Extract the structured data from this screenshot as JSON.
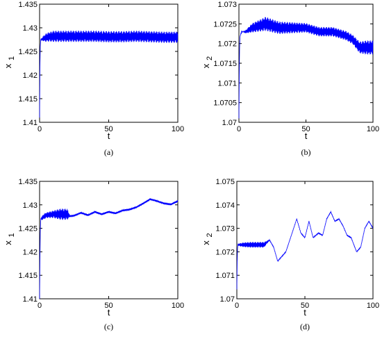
{
  "chart_data": [
    {
      "type": "line",
      "caption": "(a)",
      "xlabel": "t",
      "ylabel": "x",
      "ylabel_sub": "1",
      "xlim": [
        0,
        100
      ],
      "ylim": [
        1.41,
        1.435
      ],
      "xticks": [
        "0",
        "50",
        "100"
      ],
      "yticks": [
        "1.41",
        "1.415",
        "1.42",
        "1.425",
        "1.43",
        "1.435"
      ],
      "series": [
        {
          "color": "#0000ff",
          "x": [
            0,
            0.3,
            0.6,
            1,
            2,
            3,
            4,
            5,
            10,
            20,
            30,
            40,
            50,
            60,
            70,
            80,
            90,
            100
          ],
          "y": [
            1.411,
            1.424,
            1.427,
            1.4275,
            1.4276,
            1.4278,
            1.4278,
            1.428,
            1.4282,
            1.4282,
            1.4282,
            1.4282,
            1.4281,
            1.4281,
            1.4282,
            1.4281,
            1.428,
            1.428
          ],
          "osc_amp": [
            0,
            0,
            0,
            0.0002,
            0.0004,
            0.0006,
            0.0008,
            0.0009,
            0.0012,
            0.0012,
            0.0012,
            0.0012,
            0.0012,
            0.0012,
            0.0012,
            0.0012,
            0.0012,
            0.0012
          ]
        }
      ]
    },
    {
      "type": "line",
      "caption": "(b)",
      "xlabel": "t",
      "ylabel": "x",
      "ylabel_sub": "2",
      "xlim": [
        0,
        100
      ],
      "ylim": [
        1.07,
        1.073
      ],
      "xticks": [
        "0",
        "50",
        "100"
      ],
      "yticks": [
        "1.07",
        "1.0705",
        "1.071",
        "1.0715",
        "1.072",
        "1.0725",
        "1.073"
      ],
      "series": [
        {
          "color": "#0000ff",
          "x": [
            0,
            0.3,
            0.6,
            1,
            2,
            3,
            5,
            10,
            20,
            30,
            40,
            50,
            60,
            70,
            80,
            85,
            90,
            95,
            100
          ],
          "y": [
            1.0701,
            1.0714,
            1.0721,
            1.0722,
            1.0723,
            1.0723,
            1.0723,
            1.0724,
            1.0725,
            1.0724,
            1.0724,
            1.0724,
            1.0723,
            1.0723,
            1.0722,
            1.0721,
            1.0719,
            1.0719,
            1.0719
          ],
          "osc_amp": [
            0,
            0,
            0,
            0,
            3e-05,
            0,
            4e-05,
            0.00012,
            0.00018,
            0.00016,
            0.00014,
            0.00012,
            0.00012,
            0.00012,
            0.00012,
            0.00012,
            0.00015,
            0.00018,
            0.00018
          ]
        }
      ]
    },
    {
      "type": "line",
      "caption": "(c)",
      "xlabel": "t",
      "ylabel": "x",
      "ylabel_sub": "1",
      "xlim": [
        0,
        100
      ],
      "ylim": [
        1.41,
        1.435
      ],
      "xticks": [
        "0",
        "50",
        "100"
      ],
      "yticks": [
        "1.41",
        "1.415",
        "1.42",
        "1.425",
        "1.43",
        "1.435"
      ],
      "series": [
        {
          "color": "#0000ff",
          "x": [
            0,
            0.3,
            0.6,
            1,
            3,
            5,
            10,
            15,
            18,
            20,
            22,
            25,
            30,
            35,
            40,
            45,
            50,
            55,
            60,
            65,
            70,
            75,
            80,
            85,
            88,
            90,
            95,
            100
          ],
          "y": [
            1.41,
            1.42,
            1.426,
            1.427,
            1.4275,
            1.4278,
            1.428,
            1.428,
            1.428,
            1.428,
            1.4276,
            1.4277,
            1.4283,
            1.4278,
            1.4285,
            1.428,
            1.4285,
            1.4282,
            1.4288,
            1.429,
            1.4295,
            1.4303,
            1.4312,
            1.4308,
            1.4305,
            1.4303,
            1.4301,
            1.4308
          ],
          "osc_amp": [
            0,
            0,
            0,
            0.0003,
            0.0006,
            0.0006,
            0.0008,
            0.0012,
            0.0012,
            0.0012,
            0.0002,
            0.0002,
            0.0002,
            0.0002,
            0.0002,
            0.0002,
            0.0002,
            0.0002,
            0.0002,
            0.0002,
            0.0002,
            0.0002,
            0.0002,
            0.0002,
            0.0002,
            0.0002,
            0.0002,
            0.0002
          ]
        }
      ]
    },
    {
      "type": "line",
      "caption": "(d)",
      "xlabel": "t",
      "ylabel": "x",
      "ylabel_sub": "2",
      "xlim": [
        0,
        100
      ],
      "ylim": [
        1.07,
        1.075
      ],
      "xticks": [
        "0",
        "50",
        "100"
      ],
      "yticks": [
        "1.07",
        "1.071",
        "1.072",
        "1.073",
        "1.074",
        "1.075"
      ],
      "series": [
        {
          "color": "#0000ff",
          "x": [
            0,
            0.3,
            0.6,
            1,
            5,
            10,
            15,
            20,
            24,
            27,
            30,
            33,
            36,
            40,
            44,
            47,
            50,
            53,
            56,
            60,
            63,
            66,
            69,
            72,
            75,
            78,
            81,
            84,
            88,
            91,
            94,
            97,
            100
          ],
          "y": [
            1.0704,
            1.0718,
            1.0723,
            1.0723,
            1.0723,
            1.0723,
            1.0723,
            1.0723,
            1.0725,
            1.0722,
            1.0716,
            1.0718,
            1.072,
            1.0727,
            1.0734,
            1.0728,
            1.0726,
            1.0733,
            1.0726,
            1.0728,
            1.0727,
            1.0734,
            1.0737,
            1.0733,
            1.0734,
            1.0731,
            1.0727,
            1.0726,
            1.072,
            1.0722,
            1.073,
            1.0733,
            1.073
          ],
          "osc_amp": [
            0,
            0,
            0,
            5e-05,
            0.0001,
            0.00012,
            0.00012,
            0.00012,
            2e-05,
            2e-05,
            2e-05,
            2e-05,
            2e-05,
            2e-05,
            2e-05,
            2e-05,
            2e-05,
            2e-05,
            2e-05,
            2e-05,
            2e-05,
            2e-05,
            2e-05,
            2e-05,
            2e-05,
            2e-05,
            2e-05,
            2e-05,
            2e-05,
            2e-05,
            2e-05,
            2e-05,
            2e-05
          ]
        }
      ]
    }
  ]
}
